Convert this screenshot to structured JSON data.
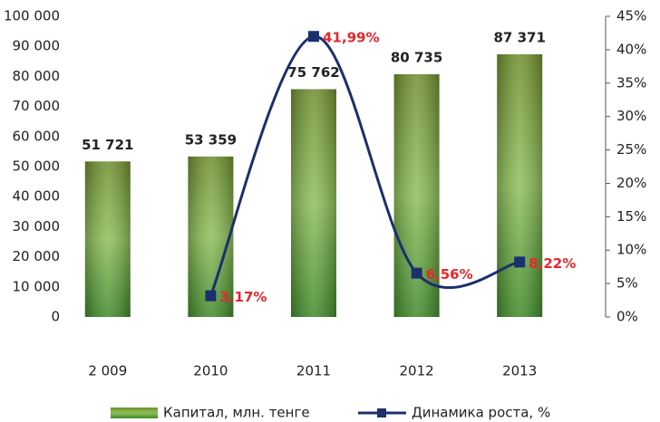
{
  "chart_data": {
    "type": "bar",
    "categories": [
      "2 009",
      "2010",
      "2011",
      "2012",
      "2013"
    ],
    "series": [
      {
        "name": "Капитал, млн. тенге",
        "type": "bar",
        "color": "#4e8a2a",
        "values": [
          51721,
          53359,
          75762,
          80735,
          87371
        ],
        "value_labels": [
          "51 721",
          "53 359",
          "75 762",
          "80 735",
          "87 371"
        ]
      },
      {
        "name": "Динамика роста, %",
        "type": "line",
        "axis": "y2",
        "color": "#1c2f6e",
        "values": [
          null,
          3.17,
          41.99,
          6.56,
          8.22
        ],
        "value_labels": [
          null,
          "3,17%",
          "41,99%",
          "6,56%",
          "8,22%"
        ]
      }
    ],
    "ylim": [
      0,
      100000
    ],
    "yticks": [
      0,
      {
        "value": 10000,
        "label": "10 000"
      },
      {
        "value": 20000,
        "label": "20 000"
      },
      {
        "value": 30000,
        "label": "30 000"
      },
      {
        "value": 40000,
        "label": "40 000"
      },
      {
        "value": 50000,
        "label": "50 000"
      },
      {
        "value": 60000,
        "label": "60 000"
      },
      {
        "value": 70000,
        "label": "70 000"
      },
      {
        "value": 80000,
        "label": "80 000"
      },
      {
        "value": 90000,
        "label": "90 000"
      },
      {
        "value": 100000,
        "label": "100 000"
      }
    ],
    "y2lim": [
      0,
      45
    ],
    "y2ticks": [
      {
        "value": 0,
        "label": "0%"
      },
      {
        "value": 5,
        "label": "5%"
      },
      {
        "value": 10,
        "label": "10%"
      },
      {
        "value": 15,
        "label": "15%"
      },
      {
        "value": 20,
        "label": "20%"
      },
      {
        "value": 25,
        "label": "25%"
      },
      {
        "value": 30,
        "label": "30%"
      },
      {
        "value": 35,
        "label": "35%"
      },
      {
        "value": 40,
        "label": "40%"
      },
      {
        "value": 45,
        "label": "45%"
      }
    ],
    "grid": false,
    "legend": "bottom"
  }
}
